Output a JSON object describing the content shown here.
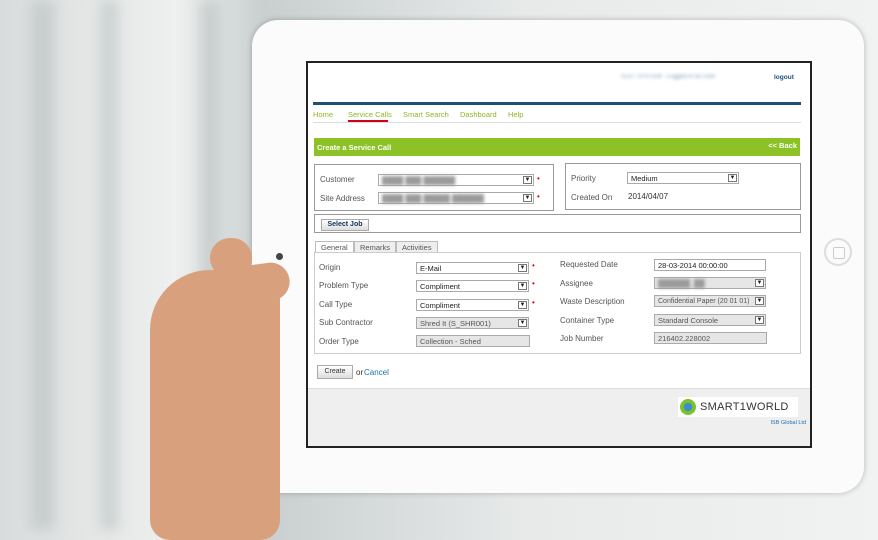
{
  "header": {
    "user_info_blurred": "TEST SYSTEM - Logged in as User",
    "logout": "logout"
  },
  "nav": {
    "items": [
      "Home",
      "Service Calls",
      "Smart Search",
      "Dashboard",
      "Help"
    ],
    "active": "Service Calls"
  },
  "title_bar": {
    "title": "Create a Service Call",
    "back": "<< Back"
  },
  "customer_box": {
    "customer_label": "Customer",
    "site_label": "Site Address"
  },
  "priority_box": {
    "priority_label": "Priority",
    "priority_value": "Medium",
    "created_label": "Created On",
    "created_value": "2014/04/07"
  },
  "select_job": "Select Job",
  "tabs": [
    "General",
    "Remarks",
    "Activities"
  ],
  "general": {
    "origin": {
      "label": "Origin",
      "value": "E-Mail"
    },
    "problem_type": {
      "label": "Problem Type",
      "value": "Compliment"
    },
    "call_type": {
      "label": "Call Type",
      "value": "Compliment"
    },
    "sub_contractor": {
      "label": "Sub Contractor",
      "value": "Shred It (S_SHR001)"
    },
    "order_type": {
      "label": "Order Type",
      "value": "Collection - Sched"
    },
    "requested_date": {
      "label": "Requested Date",
      "value": "28-03-2014 00:00:00"
    },
    "assignee": {
      "label": "Assignee"
    },
    "waste_description": {
      "label": "Waste Description",
      "value": "Confidential Paper (20 01 01)"
    },
    "container_type": {
      "label": "Container Type",
      "value": "Standard Console"
    },
    "job_number": {
      "label": "Job Number",
      "value": "216402.228002"
    }
  },
  "actions": {
    "create": "Create",
    "or": "or",
    "cancel": "Cancel"
  },
  "footer": {
    "logo": "SMART1WORLD",
    "company": "ISB Global Ltd"
  },
  "colors": {
    "accent_green": "#8cc225",
    "nav_blue": "#1d4f7a",
    "active_underline": "#d0021b"
  }
}
